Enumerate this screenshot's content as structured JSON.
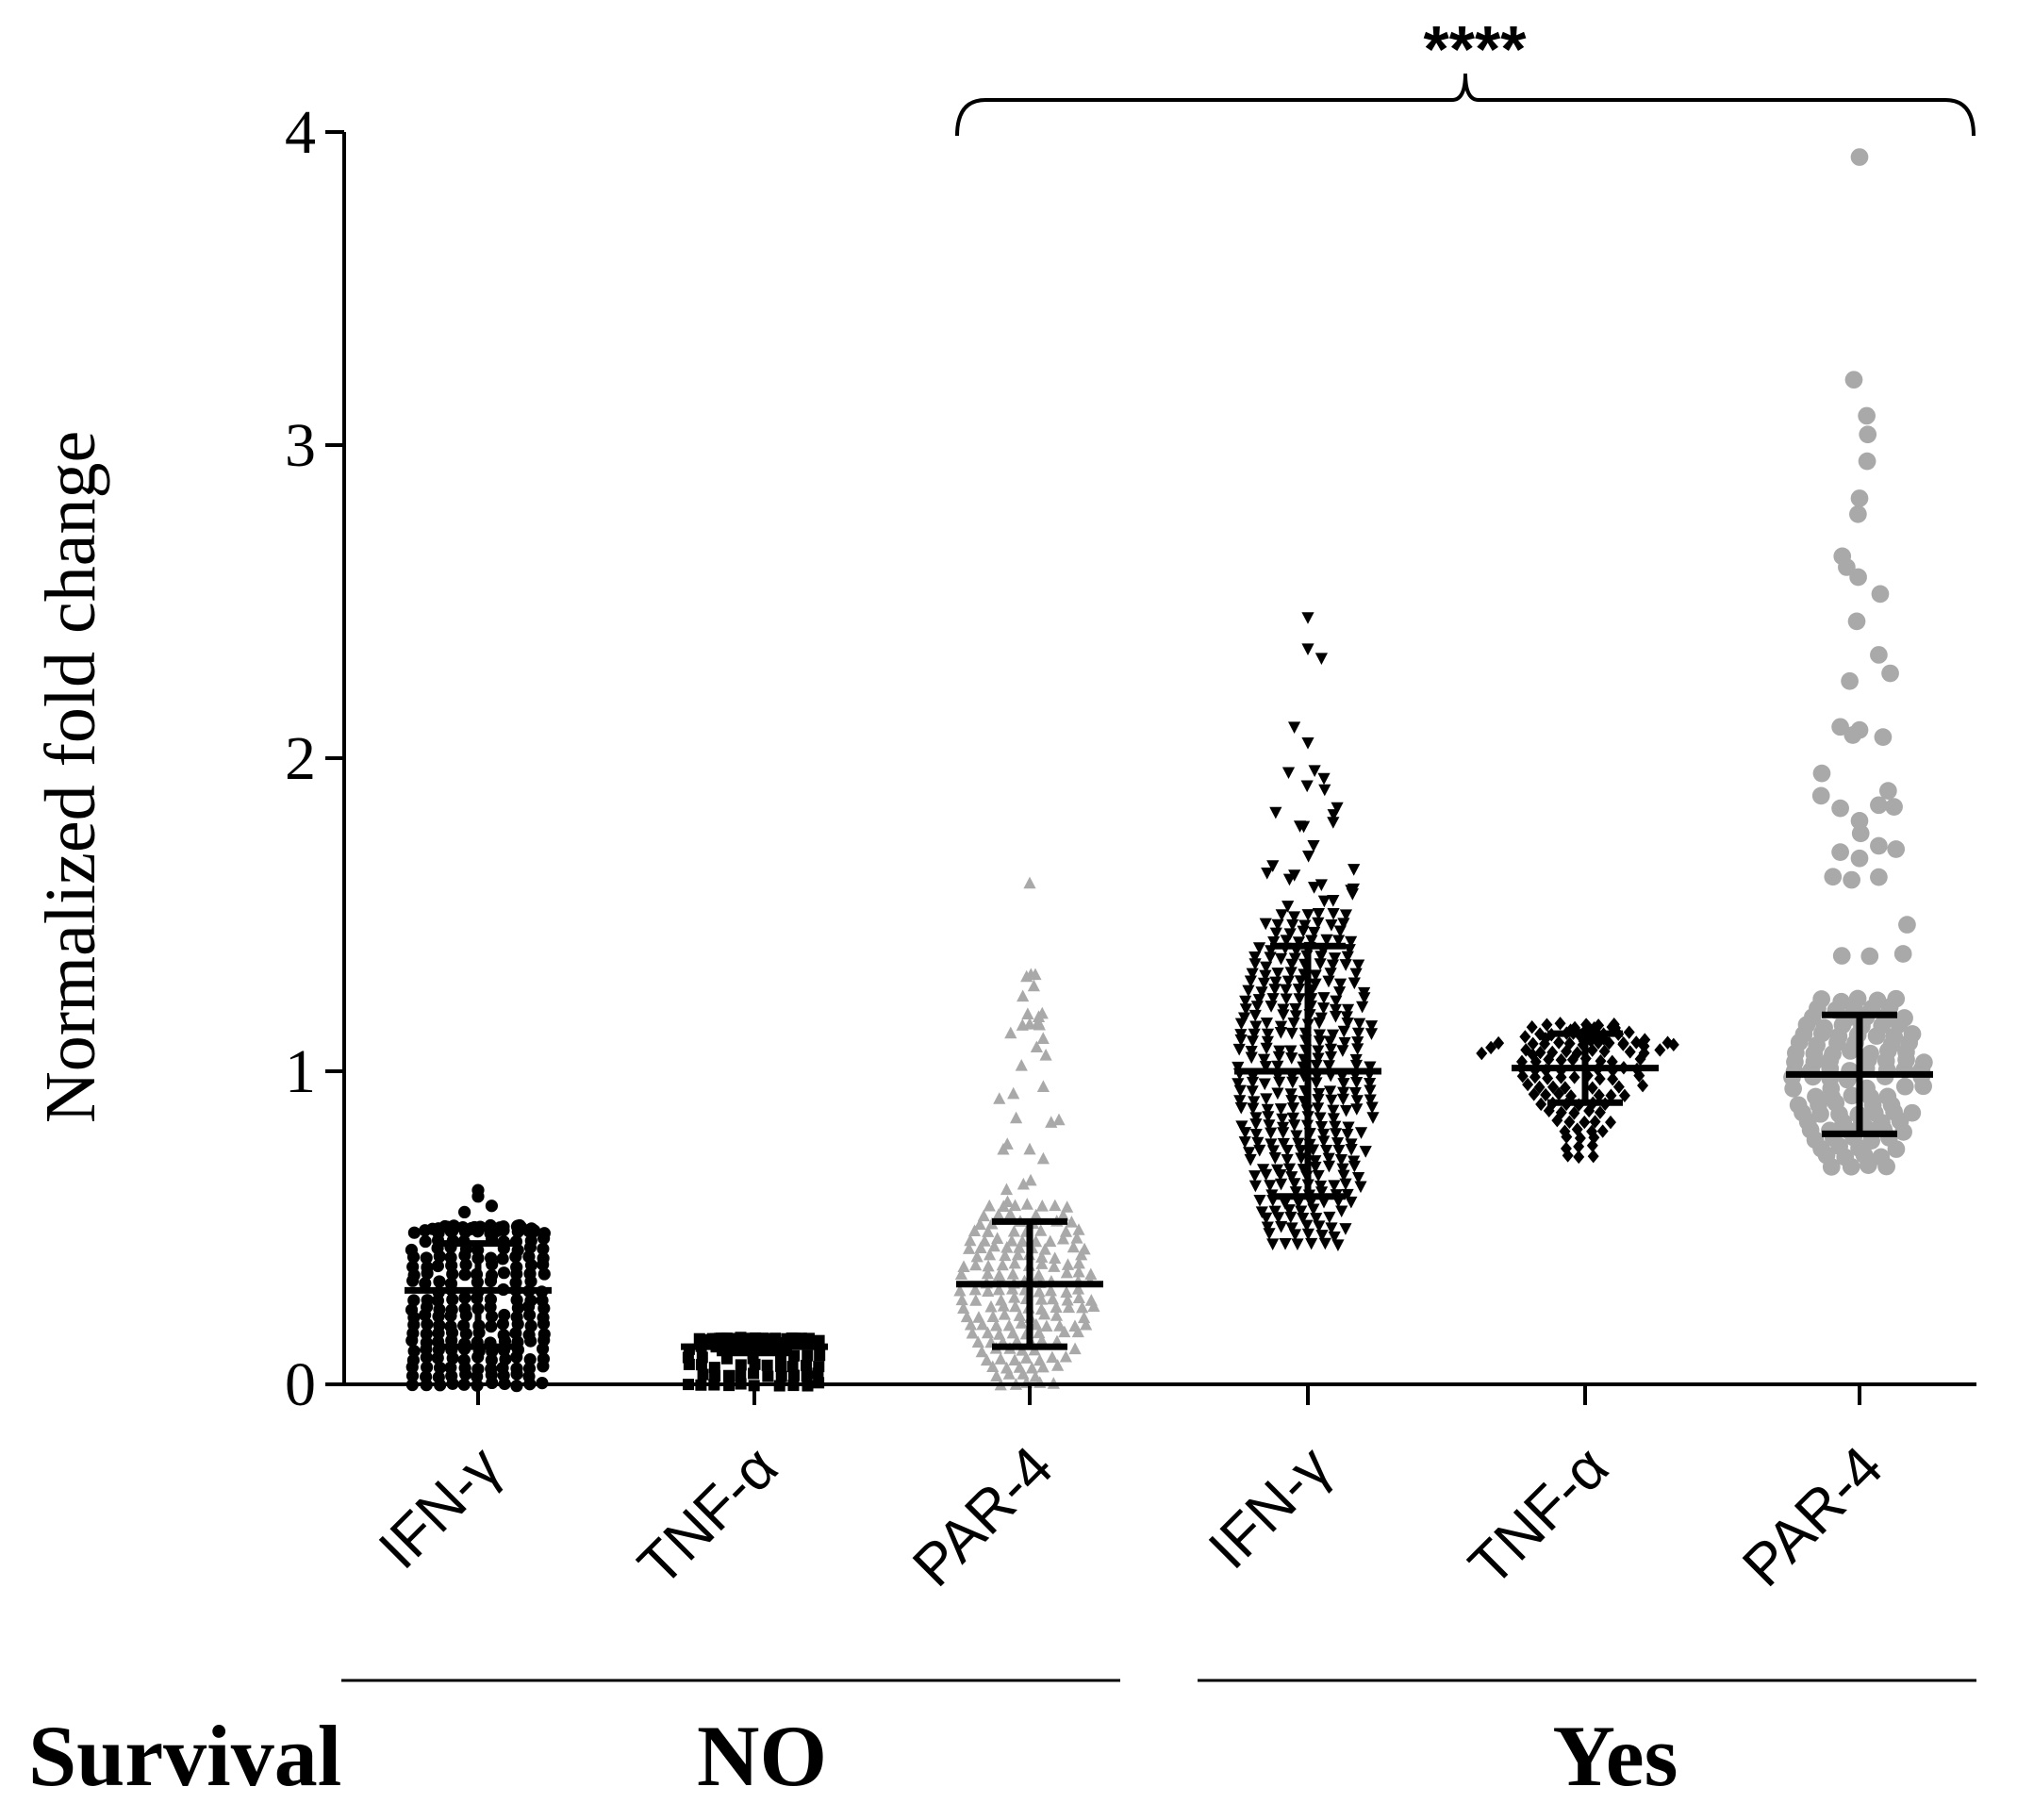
{
  "chart_data": {
    "type": "scatter",
    "subtype": "dot-plot with mean and error bars",
    "title": "",
    "xlabel": "",
    "ylabel": "Normalized fold change",
    "ylim": [
      0,
      4
    ],
    "yticks": [
      "0",
      "1",
      "2",
      "3",
      "4"
    ],
    "grid": false,
    "categories": [
      "IFN-γ",
      "TNF-α",
      "PAR-4",
      "IFN-γ",
      "TNF-α",
      "PAR-4"
    ],
    "groups": [
      {
        "label": "NO",
        "category_indices": [
          0,
          1,
          2
        ]
      },
      {
        "label": "Yes",
        "category_indices": [
          3,
          4,
          5
        ]
      }
    ],
    "group_axis_label": "Survival",
    "significance": {
      "label": "****",
      "from_category": 2,
      "to_category": 5
    },
    "series": [
      {
        "group": "NO",
        "category": "IFN-γ",
        "marker": "circle",
        "color": "#000000",
        "mean": 0.3,
        "sd_low": 0.12,
        "sd_high": 0.45,
        "min": 0.0,
        "max": 0.62,
        "outliers": [
          0.62,
          0.6,
          0.57,
          0.55
        ]
      },
      {
        "group": "NO",
        "category": "TNF-α",
        "marker": "square",
        "color": "#000000",
        "mean": 0.12,
        "sd_low": 0.1,
        "sd_high": 0.14,
        "min": 0.0,
        "max": 0.18,
        "outliers": []
      },
      {
        "group": "NO",
        "category": "PAR-4",
        "marker": "triangle-up",
        "color": "#a9a9a9",
        "mean": 0.32,
        "sd_low": 0.12,
        "sd_high": 0.52,
        "min": 0.0,
        "max": 1.6,
        "outliers": [
          1.6,
          1.15,
          0.95,
          0.85,
          0.75,
          0.72
        ]
      },
      {
        "group": "Yes",
        "category": "IFN-γ",
        "marker": "triangle-down",
        "color": "#000000",
        "mean": 1.0,
        "sd_low": 0.6,
        "sd_high": 1.4,
        "min": 0.45,
        "max": 2.45,
        "outliers": [
          2.45,
          2.35,
          2.32,
          2.1,
          2.05
        ]
      },
      {
        "group": "Yes",
        "category": "TNF-α",
        "marker": "diamond",
        "color": "#000000",
        "mean": 1.01,
        "sd_low": 0.9,
        "sd_high": 1.12,
        "min": 0.73,
        "max": 1.28,
        "outliers": []
      },
      {
        "group": "Yes",
        "category": "PAR-4",
        "marker": "circle",
        "color": "#a9a9a9",
        "mean": 0.99,
        "sd_low": 0.8,
        "sd_high": 1.18,
        "min": 0.7,
        "max": 3.92,
        "outliers": [
          3.92,
          2.83,
          2.33,
          2.1,
          2.09,
          1.85,
          1.84,
          1.8,
          1.72,
          1.7,
          1.68,
          1.62
        ]
      }
    ]
  }
}
